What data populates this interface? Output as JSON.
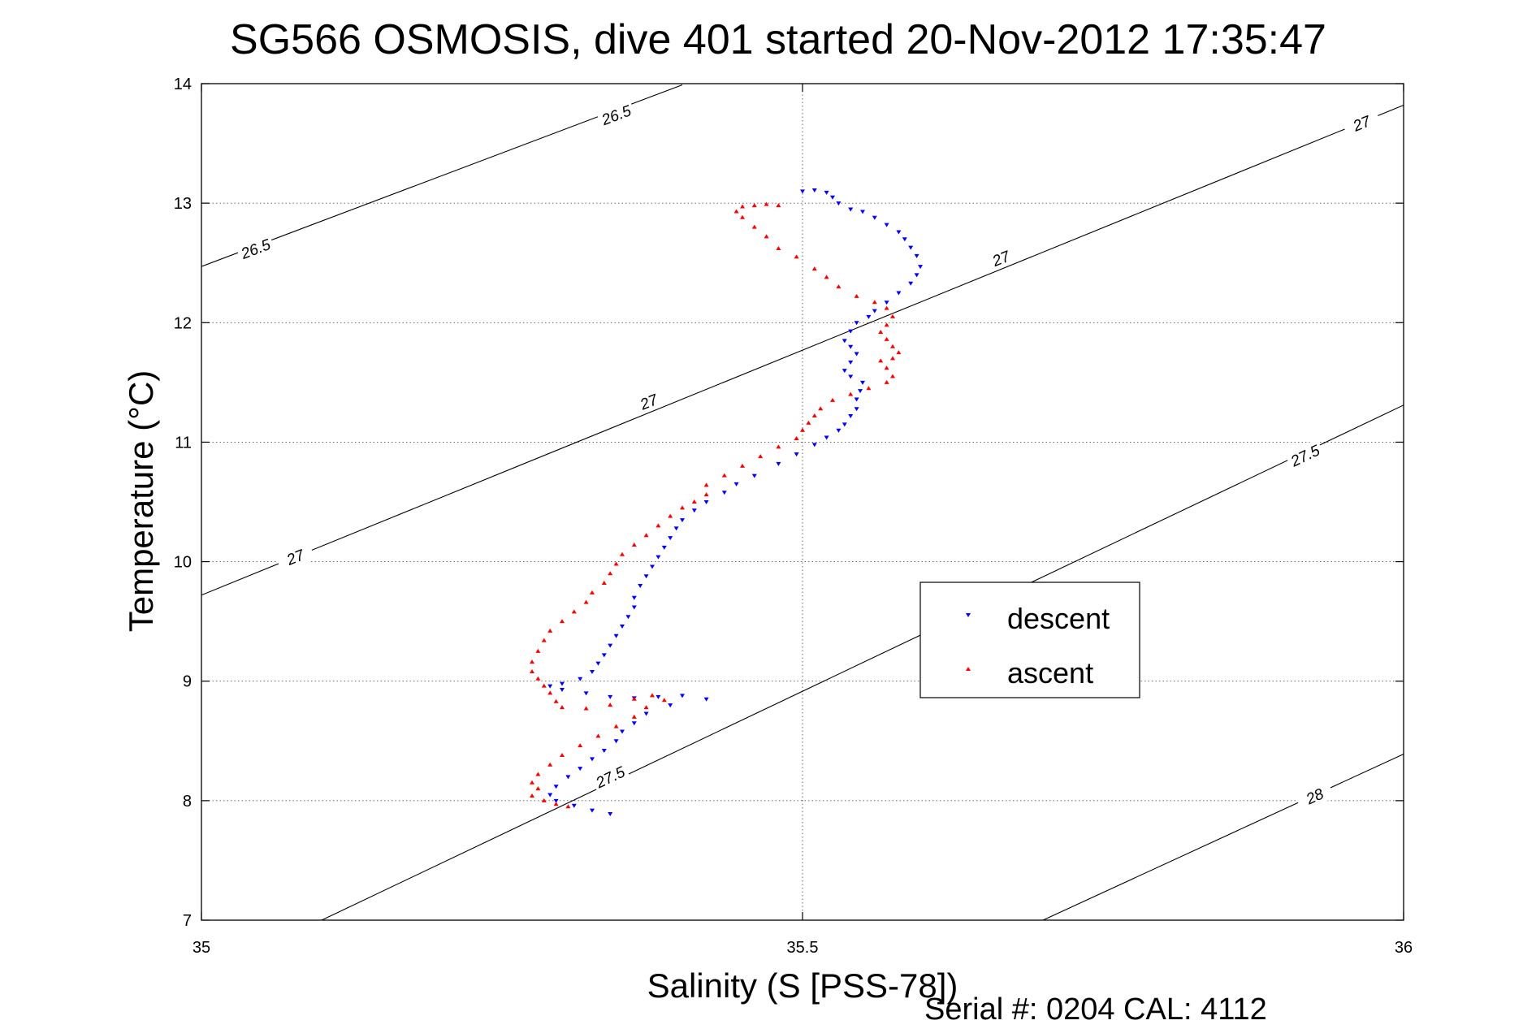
{
  "chart_data": {
    "type": "scatter",
    "title": "SG566 OSMOSIS, dive 401 started 20-Nov-2012 17:35:47",
    "xlabel": "Salinity (S [PSS-78])",
    "ylabel": "Temperature (°C)",
    "footer": "Serial #: 0204  CAL: 4112",
    "xlim": [
      35,
      36
    ],
    "ylim": [
      7,
      14
    ],
    "x_ticks": [
      35,
      35.5,
      36
    ],
    "x_tick_labels": [
      "35",
      "35.5",
      "36"
    ],
    "y_ticks": [
      7,
      8,
      9,
      10,
      11,
      12,
      13,
      14
    ],
    "y_tick_labels": [
      "7",
      "8",
      "9",
      "10",
      "11",
      "12",
      "13",
      "14"
    ],
    "grid": true,
    "legend_position": "center-right",
    "contours": [
      {
        "label": "26.5",
        "points": [
          [
            35.0,
            12.47
          ],
          [
            35.4,
            13.99
          ]
        ],
        "label_points": [
          [
            35.045,
            12.62
          ],
          [
            35.345,
            13.74
          ]
        ]
      },
      {
        "label": "27",
        "points": [
          [
            35.0,
            9.72
          ],
          [
            36.0,
            13.82
          ]
        ],
        "label_points": [
          [
            35.078,
            10.04
          ],
          [
            35.372,
            11.34
          ],
          [
            35.665,
            12.54
          ],
          [
            35.965,
            13.67
          ]
        ]
      },
      {
        "label": "27.5",
        "points": [
          [
            35.1,
            7.0
          ],
          [
            36.0,
            11.31
          ]
        ],
        "label_points": [
          [
            35.34,
            8.2
          ],
          [
            35.918,
            10.89
          ]
        ]
      },
      {
        "label": "28",
        "points": [
          [
            35.7,
            7.0
          ],
          [
            36.0,
            8.39
          ]
        ],
        "label_points": [
          [
            35.926,
            8.04
          ]
        ]
      }
    ],
    "series": [
      {
        "name": "descent",
        "color": "#0000ff",
        "marker": "triangle-down",
        "points": [
          [
            35.5,
            13.1
          ],
          [
            35.51,
            13.11
          ],
          [
            35.52,
            13.09
          ],
          [
            35.525,
            13.05
          ],
          [
            35.53,
            13.0
          ],
          [
            35.54,
            12.95
          ],
          [
            35.55,
            12.93
          ],
          [
            35.56,
            12.88
          ],
          [
            35.57,
            12.82
          ],
          [
            35.58,
            12.76
          ],
          [
            35.585,
            12.7
          ],
          [
            35.59,
            12.63
          ],
          [
            35.595,
            12.56
          ],
          [
            35.598,
            12.47
          ],
          [
            35.595,
            12.4
          ],
          [
            35.59,
            12.33
          ],
          [
            35.58,
            12.25
          ],
          [
            35.57,
            12.17
          ],
          [
            35.56,
            12.1
          ],
          [
            35.555,
            12.05
          ],
          [
            35.545,
            12.0
          ],
          [
            35.54,
            11.93
          ],
          [
            35.535,
            11.85
          ],
          [
            35.54,
            11.8
          ],
          [
            35.545,
            11.74
          ],
          [
            35.54,
            11.67
          ],
          [
            35.535,
            11.6
          ],
          [
            35.54,
            11.55
          ],
          [
            35.55,
            11.5
          ],
          [
            35.548,
            11.43
          ],
          [
            35.545,
            11.36
          ],
          [
            35.545,
            11.28
          ],
          [
            35.54,
            11.22
          ],
          [
            35.535,
            11.15
          ],
          [
            35.53,
            11.1
          ],
          [
            35.52,
            11.04
          ],
          [
            35.51,
            10.98
          ],
          [
            35.495,
            10.9
          ],
          [
            35.48,
            10.82
          ],
          [
            35.46,
            10.72
          ],
          [
            35.445,
            10.65
          ],
          [
            35.435,
            10.58
          ],
          [
            35.42,
            10.5
          ],
          [
            35.41,
            10.43
          ],
          [
            35.4,
            10.35
          ],
          [
            35.395,
            10.28
          ],
          [
            35.39,
            10.2
          ],
          [
            35.385,
            10.12
          ],
          [
            35.38,
            10.04
          ],
          [
            35.375,
            9.96
          ],
          [
            35.37,
            9.88
          ],
          [
            35.365,
            9.8
          ],
          [
            35.36,
            9.7
          ],
          [
            35.36,
            9.62
          ],
          [
            35.355,
            9.54
          ],
          [
            35.35,
            9.46
          ],
          [
            35.345,
            9.38
          ],
          [
            35.34,
            9.3
          ],
          [
            35.335,
            9.22
          ],
          [
            35.33,
            9.15
          ],
          [
            35.325,
            9.08
          ],
          [
            35.315,
            9.02
          ],
          [
            35.3,
            8.98
          ],
          [
            35.29,
            8.96
          ],
          [
            35.3,
            8.93
          ],
          [
            35.32,
            8.9
          ],
          [
            35.34,
            8.87
          ],
          [
            35.36,
            8.86
          ],
          [
            35.38,
            8.87
          ],
          [
            35.4,
            8.88
          ],
          [
            35.42,
            8.85
          ],
          [
            35.39,
            8.8
          ],
          [
            35.37,
            8.73
          ],
          [
            35.36,
            8.65
          ],
          [
            35.35,
            8.58
          ],
          [
            35.345,
            8.5
          ],
          [
            35.335,
            8.42
          ],
          [
            35.325,
            8.35
          ],
          [
            35.315,
            8.27
          ],
          [
            35.305,
            8.2
          ],
          [
            35.295,
            8.12
          ],
          [
            35.29,
            8.05
          ],
          [
            35.295,
            8.0
          ],
          [
            35.31,
            7.96
          ],
          [
            35.325,
            7.92
          ],
          [
            35.34,
            7.89
          ]
        ]
      },
      {
        "name": "ascent",
        "color": "#ff0000",
        "marker": "triangle-up",
        "points": [
          [
            35.48,
            12.98
          ],
          [
            35.47,
            12.99
          ],
          [
            35.46,
            12.98
          ],
          [
            35.45,
            12.97
          ],
          [
            35.445,
            12.93
          ],
          [
            35.45,
            12.88
          ],
          [
            35.46,
            12.8
          ],
          [
            35.47,
            12.72
          ],
          [
            35.48,
            12.62
          ],
          [
            35.495,
            12.55
          ],
          [
            35.51,
            12.45
          ],
          [
            35.52,
            12.38
          ],
          [
            35.53,
            12.3
          ],
          [
            35.545,
            12.22
          ],
          [
            35.56,
            12.17
          ],
          [
            35.57,
            12.12
          ],
          [
            35.575,
            12.05
          ],
          [
            35.57,
            11.98
          ],
          [
            35.565,
            11.92
          ],
          [
            35.57,
            11.86
          ],
          [
            35.575,
            11.8
          ],
          [
            35.58,
            11.75
          ],
          [
            35.575,
            11.7
          ],
          [
            35.565,
            11.68
          ],
          [
            35.57,
            11.62
          ],
          [
            35.575,
            11.55
          ],
          [
            35.57,
            11.5
          ],
          [
            35.555,
            11.45
          ],
          [
            35.54,
            11.4
          ],
          [
            35.525,
            11.35
          ],
          [
            35.515,
            11.28
          ],
          [
            35.51,
            11.22
          ],
          [
            35.505,
            11.16
          ],
          [
            35.5,
            11.1
          ],
          [
            35.495,
            11.03
          ],
          [
            35.48,
            10.96
          ],
          [
            35.465,
            10.88
          ],
          [
            35.45,
            10.8
          ],
          [
            35.435,
            10.72
          ],
          [
            35.42,
            10.64
          ],
          [
            35.42,
            10.56
          ],
          [
            35.41,
            10.5
          ],
          [
            35.4,
            10.45
          ],
          [
            35.39,
            10.38
          ],
          [
            35.38,
            10.3
          ],
          [
            35.37,
            10.22
          ],
          [
            35.36,
            10.14
          ],
          [
            35.35,
            10.06
          ],
          [
            35.345,
            9.98
          ],
          [
            35.34,
            9.9
          ],
          [
            35.335,
            9.82
          ],
          [
            35.325,
            9.74
          ],
          [
            35.32,
            9.66
          ],
          [
            35.31,
            9.58
          ],
          [
            35.3,
            9.5
          ],
          [
            35.29,
            9.42
          ],
          [
            35.285,
            9.34
          ],
          [
            35.28,
            9.25
          ],
          [
            35.275,
            9.16
          ],
          [
            35.275,
            9.08
          ],
          [
            35.28,
            9.02
          ],
          [
            35.285,
            8.96
          ],
          [
            35.29,
            8.9
          ],
          [
            35.295,
            8.83
          ],
          [
            35.3,
            8.78
          ],
          [
            35.32,
            8.77
          ],
          [
            35.34,
            8.8
          ],
          [
            35.36,
            8.85
          ],
          [
            35.375,
            8.88
          ],
          [
            35.385,
            8.84
          ],
          [
            35.37,
            8.78
          ],
          [
            35.36,
            8.7
          ],
          [
            35.345,
            8.62
          ],
          [
            35.33,
            8.54
          ],
          [
            35.315,
            8.46
          ],
          [
            35.3,
            8.38
          ],
          [
            35.29,
            8.3
          ],
          [
            35.28,
            8.22
          ],
          [
            35.275,
            8.15
          ],
          [
            35.28,
            8.1
          ],
          [
            35.275,
            8.04
          ],
          [
            35.285,
            8.0
          ],
          [
            35.295,
            7.97
          ],
          [
            35.305,
            7.95
          ]
        ]
      }
    ]
  }
}
